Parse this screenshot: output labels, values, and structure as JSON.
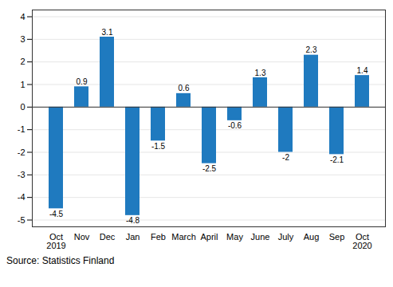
{
  "chart_data": {
    "type": "bar",
    "categories": [
      "Oct\n2019",
      "Nov",
      "Dec",
      "Jan",
      "Feb",
      "March",
      "April",
      "May",
      "June",
      "July",
      "Aug",
      "Sep",
      "Oct\n2020"
    ],
    "values": [
      -4.5,
      0.9,
      3.1,
      -4.8,
      -1.5,
      0.6,
      -2.5,
      -0.6,
      1.3,
      -2.0,
      2.3,
      -2.1,
      1.4
    ],
    "color": "#1f7abf",
    "ylim": [
      -5.3,
      4.3
    ],
    "yticks": [
      -5,
      -4,
      -3,
      -2,
      -1,
      0,
      1,
      2,
      3,
      4
    ],
    "grid": true,
    "data_labels": true,
    "caption": "Source: Statistics Finland"
  }
}
